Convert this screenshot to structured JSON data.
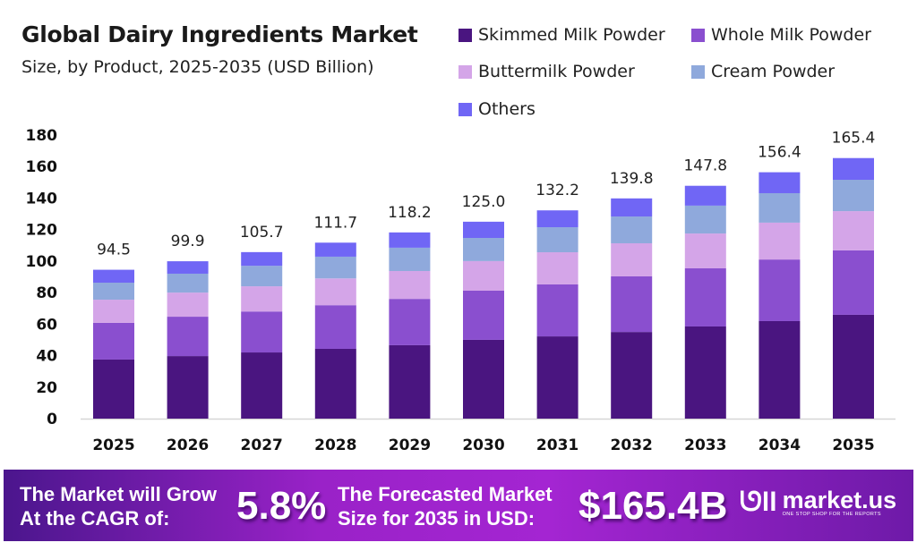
{
  "chart_data": {
    "type": "bar",
    "stacked": true,
    "title": "Global Dairy Ingredients Market",
    "subtitle": "Size, by Product, 2025-2035 (USD Billion)",
    "xlabel": "",
    "ylabel": "",
    "ylim": [
      0,
      180
    ],
    "yticks": [
      0,
      20,
      40,
      60,
      80,
      100,
      120,
      140,
      160,
      180
    ],
    "grid": false,
    "legend_position": "top-right",
    "categories": [
      "2025",
      "2026",
      "2027",
      "2028",
      "2029",
      "2030",
      "2031",
      "2032",
      "2033",
      "2034",
      "2035"
    ],
    "totals": [
      "94.5",
      "99.9",
      "105.7",
      "111.7",
      "118.2",
      "125.0",
      "132.2",
      "139.8",
      "147.8",
      "156.4",
      "165.4"
    ],
    "series": [
      {
        "name": "Skimmed Milk Powder",
        "color": "#4a1580",
        "values": [
          37.5,
          39.7,
          42.0,
          44.3,
          46.6,
          50.0,
          52.2,
          55.0,
          58.5,
          61.9,
          65.9
        ]
      },
      {
        "name": "Whole Milk Powder",
        "color": "#8a4fcf",
        "values": [
          23.3,
          25.0,
          26.0,
          27.7,
          29.4,
          31.2,
          33.0,
          35.3,
          36.9,
          39.1,
          40.9
        ]
      },
      {
        "name": "Buttermilk Powder",
        "color": "#d4a5e8",
        "values": [
          14.7,
          15.3,
          16.0,
          17.0,
          17.7,
          18.8,
          20.4,
          21.0,
          22.1,
          23.4,
          24.9
        ]
      },
      {
        "name": "Cream Powder",
        "color": "#8fa9dc",
        "values": [
          10.8,
          12.0,
          13.0,
          13.8,
          14.8,
          14.7,
          15.9,
          17.0,
          17.7,
          18.7,
          19.9
        ]
      },
      {
        "name": "Others",
        "color": "#7066f5",
        "values": [
          8.2,
          7.9,
          8.7,
          8.9,
          9.7,
          10.3,
          10.7,
          11.5,
          12.6,
          13.3,
          13.8
        ]
      }
    ]
  },
  "footer": {
    "cagr_label_line1": "The Market will Grow",
    "cagr_label_line2": "At the CAGR of:",
    "cagr_value": "5.8%",
    "forecast_label_line1": "The Forecasted Market",
    "forecast_label_line2": "Size for 2035 in USD:",
    "forecast_value": "$165.4B",
    "brand": "market.us",
    "brand_tagline": "ONE STOP SHOP FOR THE REPORTS"
  }
}
